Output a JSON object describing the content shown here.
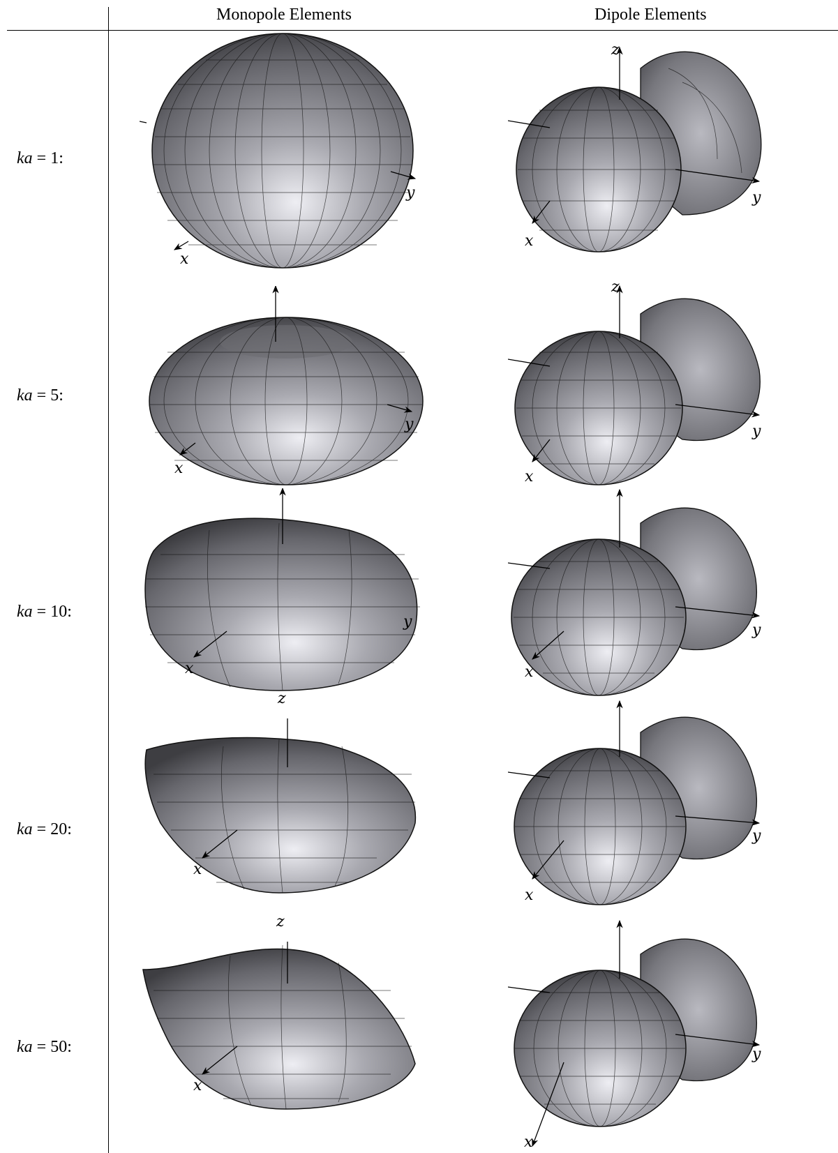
{
  "header": {
    "col1": "Monopole Elements",
    "col2": "Dipole Elements"
  },
  "rows": [
    {
      "label_var": "ka",
      "label_rest": " = 1:"
    },
    {
      "label_var": "ka",
      "label_rest": " = 5:"
    },
    {
      "label_var": "ka",
      "label_rest": " = 10:"
    },
    {
      "label_var": "ka",
      "label_rest": " = 20:"
    },
    {
      "label_var": "ka",
      "label_rest": " = 50:"
    }
  ],
  "axis_labels": {
    "x": "x",
    "y": "y",
    "z": "z"
  },
  "colors": {
    "surface_light": "#e4e4ea",
    "surface_dark": "#4a4a4e",
    "grid": "#111111"
  }
}
